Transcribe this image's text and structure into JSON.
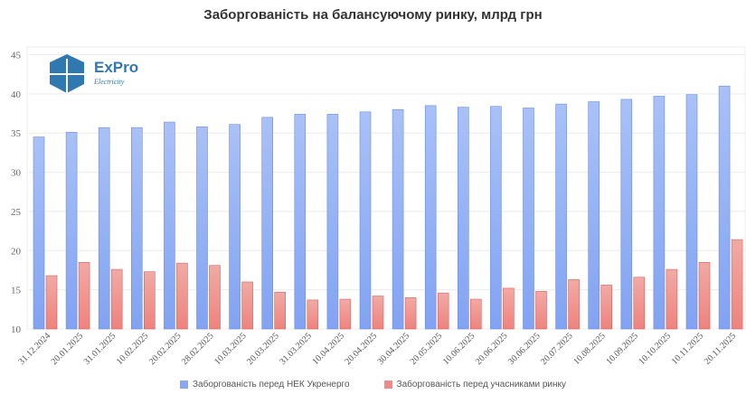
{
  "chart_data": {
    "type": "bar",
    "title": "Заборгованість на балансуючому ринку, млрд грн",
    "xlabel": "",
    "ylabel": "",
    "ylim": [
      10,
      45
    ],
    "yticks": [
      10,
      15,
      20,
      25,
      30,
      35,
      40,
      45
    ],
    "grid": true,
    "legend_position": "bottom",
    "categories": [
      "31.12.2024",
      "20.01.2025",
      "31.01.2025",
      "10.02.2025",
      "20.02.2025",
      "28.02.2025",
      "10.03.2025",
      "20.03.2025",
      "31.03.2025",
      "10.04.2025",
      "20.04.2025",
      "30.04.2025",
      "20.05.2025",
      "10.06.2025",
      "20.06.2025",
      "30.06.2025",
      "20.07.2025",
      "10.08.2025",
      "10.09.2025",
      "10.10.2025",
      "10.11.2025",
      "20.11.2025"
    ],
    "series": [
      {
        "name": "Заборгованість перед НЕК Укренерго",
        "color": "#8aa8f0",
        "values": [
          34.5,
          35.1,
          35.7,
          35.7,
          36.4,
          35.8,
          36.1,
          37.0,
          37.4,
          37.4,
          37.7,
          38.0,
          38.5,
          38.3,
          38.4,
          38.2,
          38.7,
          39.0,
          39.3,
          39.7,
          39.9,
          41.0
        ]
      },
      {
        "name": "Заборгованість перед учасниками ринку",
        "color": "#ef8a86",
        "values": [
          16.8,
          18.5,
          17.6,
          17.3,
          18.4,
          18.1,
          16.0,
          14.7,
          13.7,
          13.8,
          14.2,
          14.0,
          14.6,
          13.8,
          15.2,
          14.8,
          16.3,
          15.6,
          16.6,
          17.6,
          18.5,
          21.4
        ]
      }
    ]
  },
  "logo": {
    "name": "ExPro",
    "sub": "Electricity"
  }
}
